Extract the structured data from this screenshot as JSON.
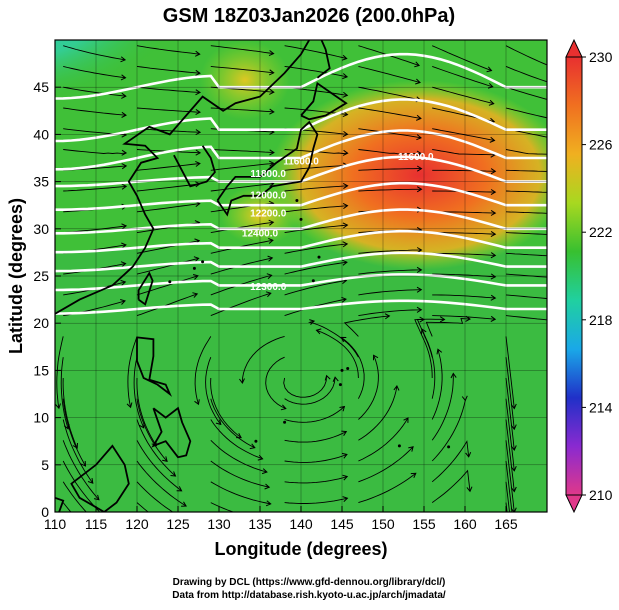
{
  "chart_data": {
    "type": "heatmap",
    "title": "GSM 18Z03Jan2026 (200.0hPa)",
    "xlabel": "Longitude (degrees)",
    "ylabel": "Latitude  (degrees)",
    "xlim": [
      110,
      170
    ],
    "ylim": [
      0,
      50
    ],
    "xticks": [
      "110",
      "115",
      "120",
      "125",
      "130",
      "135",
      "140",
      "145",
      "150",
      "155",
      "160",
      "165"
    ],
    "yticks": [
      "0",
      "5",
      "10",
      "15",
      "20",
      "25",
      "30",
      "35",
      "40",
      "45"
    ],
    "colorbar": {
      "min": 210,
      "max": 230,
      "ticks": [
        "230",
        "226",
        "222",
        "218",
        "214",
        "210"
      ],
      "colors": [
        "#e0388a",
        "#8a2ad0",
        "#2030c8",
        "#1aa8e8",
        "#20d0a0",
        "#38c030",
        "#a8d820",
        "#f0b020",
        "#f07020",
        "#e83030"
      ]
    },
    "contour_labels": [
      "11600.0",
      "11800.0",
      "12000.0",
      "12200.0",
      "12400.0",
      "11600.0",
      "12300.0"
    ],
    "streamlines": true
  },
  "credits": {
    "line1": "Drawing by DCL (https://www.gfd-dennou.org/library/dcl/)",
    "line2": "Data from http://database.rish.kyoto-u.ac.jp/arch/jmadata/"
  }
}
